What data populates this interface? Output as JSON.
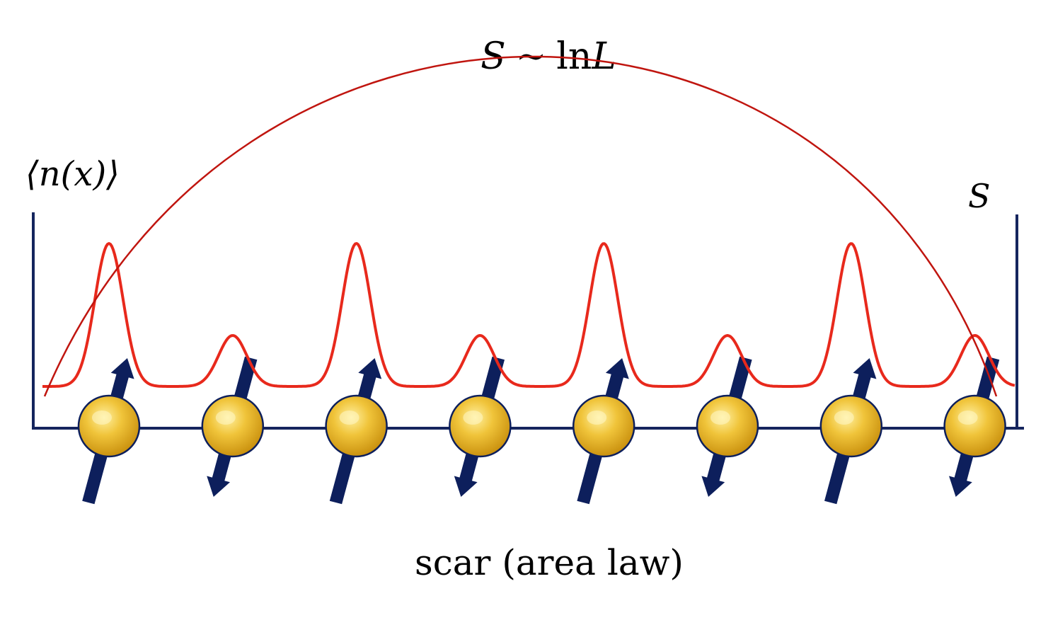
{
  "title": {
    "symbol": "S",
    "relation": "~",
    "expression": "ln",
    "variable": "L"
  },
  "left_axis_label": "⟨n(x)⟩",
  "right_axis_label": "S",
  "caption": "scar (area law)",
  "spins": [
    {
      "site": 1,
      "direction": "up"
    },
    {
      "site": 2,
      "direction": "down"
    },
    {
      "site": 3,
      "direction": "up"
    },
    {
      "site": 4,
      "direction": "down"
    },
    {
      "site": 5,
      "direction": "up"
    },
    {
      "site": 6,
      "direction": "down"
    },
    {
      "site": 7,
      "direction": "up"
    },
    {
      "site": 8,
      "direction": "down"
    }
  ],
  "density_peaks": [
    "high",
    "low",
    "high",
    "low",
    "high",
    "low",
    "high",
    "low"
  ],
  "colors": {
    "axes": "#15255e",
    "arrow": "#0d1f5c",
    "density_curve": "#e8291c",
    "entropy_curve": "#c0150f",
    "ball_light": "#fff0a0",
    "ball_mid": "#f0c43a",
    "ball_dark": "#c9900e",
    "ball_edge": "#0d1f5c"
  }
}
